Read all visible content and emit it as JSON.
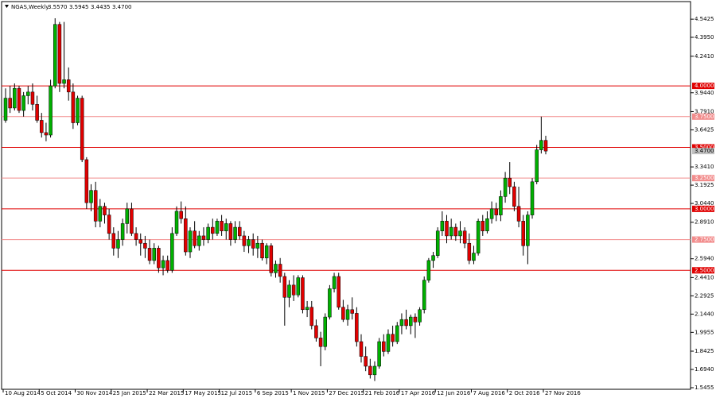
{
  "chart_data": {
    "type": "candlestick",
    "header": {
      "symbol": "NGAS,Weekly",
      "values": [
        "3.5570",
        "3.5945",
        "3.4435",
        "3.4700"
      ]
    },
    "categories": [
      "10 Aug 2014",
      null,
      null,
      null,
      null,
      null,
      null,
      null,
      "5 Oct 2014",
      null,
      null,
      null,
      null,
      null,
      null,
      null,
      "30 Nov 2014",
      null,
      null,
      null,
      null,
      null,
      null,
      null,
      "25 Jan 2015",
      null,
      null,
      null,
      null,
      null,
      null,
      null,
      "22 Mar 2015",
      null,
      null,
      null,
      null,
      null,
      null,
      null,
      "17 May 2015",
      null,
      null,
      null,
      null,
      null,
      null,
      null,
      "12 Jul 2015",
      null,
      null,
      null,
      null,
      null,
      null,
      null,
      "6 Sep 2015",
      null,
      null,
      null,
      null,
      null,
      null,
      null,
      "1 Nov 2015",
      null,
      null,
      null,
      null,
      null,
      null,
      null,
      "27 Dec 2015",
      null,
      null,
      null,
      null,
      null,
      null,
      null,
      "21 Feb 2016",
      null,
      null,
      null,
      null,
      null,
      null,
      null,
      "17 Apr 2016",
      null,
      null,
      null,
      null,
      null,
      null,
      null,
      "12 Jun 2016",
      null,
      null,
      null,
      null,
      null,
      null,
      null,
      "7 Aug 2016",
      null,
      null,
      null,
      null,
      null,
      null,
      null,
      "2 Oct 2016",
      null,
      null,
      null,
      null,
      null,
      null,
      null,
      "27 Nov 2016"
    ],
    "ohlc": [
      [
        3.72,
        3.98,
        3.7,
        3.9
      ],
      [
        3.9,
        4.0,
        3.78,
        3.82
      ],
      [
        3.82,
        4.02,
        3.8,
        3.98
      ],
      [
        3.98,
        4.0,
        3.78,
        3.8
      ],
      [
        3.8,
        3.95,
        3.75,
        3.92
      ],
      [
        3.92,
        4.0,
        3.85,
        3.95
      ],
      [
        3.95,
        4.02,
        3.8,
        3.85
      ],
      [
        3.85,
        3.92,
        3.7,
        3.72
      ],
      [
        3.72,
        3.78,
        3.58,
        3.62
      ],
      [
        3.62,
        3.7,
        3.55,
        3.6
      ],
      [
        3.6,
        4.05,
        3.58,
        4.0
      ],
      [
        4.0,
        4.55,
        3.98,
        4.5
      ],
      [
        4.5,
        4.52,
        3.95,
        4.02
      ],
      [
        4.02,
        4.52,
        3.98,
        4.05
      ],
      [
        4.05,
        4.15,
        3.88,
        3.95
      ],
      [
        3.95,
        4.02,
        3.65,
        3.7
      ],
      [
        3.7,
        3.92,
        3.68,
        3.9
      ],
      [
        3.9,
        3.92,
        3.38,
        3.4
      ],
      [
        3.4,
        3.42,
        3.0,
        3.05
      ],
      [
        3.05,
        3.2,
        2.98,
        3.15
      ],
      [
        3.15,
        3.22,
        2.85,
        2.9
      ],
      [
        2.9,
        3.08,
        2.85,
        3.02
      ],
      [
        3.02,
        3.05,
        2.88,
        2.95
      ],
      [
        2.95,
        3.0,
        2.75,
        2.8
      ],
      [
        2.8,
        2.85,
        2.62,
        2.68
      ],
      [
        2.68,
        2.82,
        2.6,
        2.75
      ],
      [
        2.75,
        2.92,
        2.7,
        2.88
      ],
      [
        2.88,
        3.05,
        2.8,
        3.0
      ],
      [
        3.0,
        3.05,
        2.78,
        2.8
      ],
      [
        2.8,
        2.85,
        2.7,
        2.75
      ],
      [
        2.75,
        2.8,
        2.62,
        2.72
      ],
      [
        2.72,
        2.78,
        2.6,
        2.68
      ],
      [
        2.68,
        2.75,
        2.55,
        2.58
      ],
      [
        2.58,
        2.72,
        2.55,
        2.68
      ],
      [
        2.68,
        2.7,
        2.48,
        2.52
      ],
      [
        2.52,
        2.62,
        2.46,
        2.58
      ],
      [
        2.58,
        2.62,
        2.48,
        2.5
      ],
      [
        2.5,
        2.85,
        2.48,
        2.8
      ],
      [
        2.8,
        3.02,
        2.78,
        2.98
      ],
      [
        2.98,
        3.06,
        2.88,
        2.92
      ],
      [
        2.92,
        3.02,
        2.62,
        2.65
      ],
      [
        2.65,
        2.85,
        2.6,
        2.82
      ],
      [
        2.82,
        2.9,
        2.68,
        2.7
      ],
      [
        2.7,
        2.82,
        2.66,
        2.78
      ],
      [
        2.78,
        2.85,
        2.7,
        2.75
      ],
      [
        2.75,
        2.88,
        2.72,
        2.85
      ],
      [
        2.85,
        2.92,
        2.75,
        2.8
      ],
      [
        2.8,
        2.92,
        2.78,
        2.9
      ],
      [
        2.9,
        2.95,
        2.78,
        2.82
      ],
      [
        2.82,
        2.92,
        2.75,
        2.88
      ],
      [
        2.88,
        2.9,
        2.7,
        2.75
      ],
      [
        2.75,
        2.9,
        2.72,
        2.85
      ],
      [
        2.85,
        2.9,
        2.75,
        2.78
      ],
      [
        2.78,
        2.82,
        2.65,
        2.7
      ],
      [
        2.7,
        2.78,
        2.64,
        2.75
      ],
      [
        2.75,
        2.8,
        2.62,
        2.68
      ],
      [
        2.68,
        2.78,
        2.6,
        2.72
      ],
      [
        2.72,
        2.75,
        2.58,
        2.6
      ],
      [
        2.6,
        2.72,
        2.55,
        2.7
      ],
      [
        2.7,
        2.72,
        2.45,
        2.48
      ],
      [
        2.48,
        2.58,
        2.44,
        2.55
      ],
      [
        2.55,
        2.6,
        2.4,
        2.45
      ],
      [
        2.45,
        2.48,
        2.05,
        2.28
      ],
      [
        2.28,
        2.42,
        2.2,
        2.38
      ],
      [
        2.38,
        2.46,
        2.25,
        2.3
      ],
      [
        2.3,
        2.46,
        2.28,
        2.44
      ],
      [
        2.44,
        2.46,
        2.15,
        2.18
      ],
      [
        2.18,
        2.25,
        2.12,
        2.2
      ],
      [
        2.2,
        2.25,
        2.02,
        2.05
      ],
      [
        2.05,
        2.1,
        1.92,
        1.95
      ],
      [
        1.95,
        2.0,
        1.72,
        1.88
      ],
      [
        1.88,
        2.15,
        1.85,
        2.12
      ],
      [
        2.12,
        2.38,
        2.1,
        2.35
      ],
      [
        2.35,
        2.48,
        2.32,
        2.45
      ],
      [
        2.45,
        2.48,
        2.18,
        2.2
      ],
      [
        2.2,
        2.26,
        2.08,
        2.1
      ],
      [
        2.1,
        2.22,
        2.05,
        2.18
      ],
      [
        2.18,
        2.28,
        2.1,
        2.15
      ],
      [
        2.15,
        2.2,
        1.88,
        1.92
      ],
      [
        1.92,
        1.98,
        1.75,
        1.8
      ],
      [
        1.8,
        1.88,
        1.68,
        1.72
      ],
      [
        1.72,
        1.78,
        1.62,
        1.65
      ],
      [
        1.65,
        1.76,
        1.6,
        1.72
      ],
      [
        1.72,
        1.95,
        1.7,
        1.92
      ],
      [
        1.92,
        1.98,
        1.8,
        1.84
      ],
      [
        1.84,
        2.02,
        1.82,
        1.98
      ],
      [
        1.98,
        2.05,
        1.88,
        1.92
      ],
      [
        1.92,
        2.08,
        1.9,
        2.05
      ],
      [
        2.05,
        2.15,
        1.98,
        2.1
      ],
      [
        2.1,
        2.18,
        2.02,
        2.05
      ],
      [
        2.05,
        2.14,
        1.98,
        2.12
      ],
      [
        2.12,
        2.15,
        1.95,
        2.08
      ],
      [
        2.08,
        2.2,
        2.05,
        2.18
      ],
      [
        2.18,
        2.45,
        2.15,
        2.42
      ],
      [
        2.42,
        2.6,
        2.4,
        2.58
      ],
      [
        2.58,
        2.65,
        2.52,
        2.62
      ],
      [
        2.62,
        2.85,
        2.6,
        2.82
      ],
      [
        2.82,
        2.98,
        2.78,
        2.9
      ],
      [
        2.9,
        2.95,
        2.72,
        2.78
      ],
      [
        2.78,
        2.92,
        2.75,
        2.85
      ],
      [
        2.85,
        2.88,
        2.74,
        2.78
      ],
      [
        2.78,
        2.9,
        2.72,
        2.82
      ],
      [
        2.82,
        2.85,
        2.68,
        2.72
      ],
      [
        2.72,
        2.8,
        2.55,
        2.58
      ],
      [
        2.58,
        2.7,
        2.55,
        2.64
      ],
      [
        2.64,
        2.92,
        2.62,
        2.9
      ],
      [
        2.9,
        2.95,
        2.78,
        2.82
      ],
      [
        2.82,
        2.98,
        2.8,
        2.92
      ],
      [
        2.92,
        3.06,
        2.88,
        3.0
      ],
      [
        3.0,
        3.05,
        2.9,
        2.95
      ],
      [
        2.95,
        3.15,
        2.9,
        3.1
      ],
      [
        3.1,
        3.3,
        3.05,
        3.25
      ],
      [
        3.25,
        3.38,
        3.12,
        3.18
      ],
      [
        3.18,
        3.22,
        2.98,
        3.02
      ],
      [
        3.02,
        3.18,
        2.85,
        2.9
      ],
      [
        2.9,
        2.95,
        2.62,
        2.7
      ],
      [
        2.7,
        2.98,
        2.55,
        2.95
      ],
      [
        2.95,
        3.25,
        2.92,
        3.22
      ],
      [
        3.22,
        3.52,
        3.2,
        3.48
      ],
      [
        3.48,
        3.75,
        3.45,
        3.557
      ],
      [
        3.557,
        3.5945,
        3.4435,
        3.47
      ]
    ],
    "up_color": "#00b000",
    "down_color": "#e00000",
    "ylim": [
      1.5325,
      4.6855
    ],
    "yticks": [
      4.5425,
      {
        "value": 4.395,
        "label": "4.3950"
      },
      {
        "value": 4.241,
        "label": "4.2410"
      },
      {
        "value": 3.944,
        "label": "3.9440"
      },
      {
        "value": 3.791,
        "label": "3.7910"
      },
      3.6425,
      {
        "value": 3.341,
        "label": "3.3410"
      },
      3.1925,
      {
        "value": 3.044,
        "label": "3.0440"
      },
      {
        "value": 2.891,
        "label": "2.8910"
      },
      {
        "value": 2.594,
        "label": "2.5940"
      },
      {
        "value": 2.441,
        "label": "2.4410"
      },
      2.2925,
      {
        "value": 2.144,
        "label": "2.1440"
      },
      1.9955,
      1.8425,
      {
        "value": 1.694,
        "label": "1.6940"
      },
      1.5455
    ],
    "levels": [
      {
        "value": 4,
        "label": "4.0000",
        "color": "#e00000"
      },
      {
        "value": 3.75,
        "label": "3.7500",
        "color": "#f28c8c"
      },
      {
        "value": 3.5,
        "label": "3.5000",
        "color": "#e00000"
      },
      {
        "value": 3.25,
        "label": "3.2500",
        "color": "#f28c8c"
      },
      {
        "value": 3,
        "label": "3.0000",
        "color": "#e00000"
      },
      {
        "value": 2.75,
        "label": "2.7500",
        "color": "#f28c8c"
      },
      {
        "value": 2.5,
        "label": "2.5000",
        "color": "#e00000"
      }
    ],
    "last_price": {
      "value": 3.47,
      "label": "3.4700"
    }
  }
}
